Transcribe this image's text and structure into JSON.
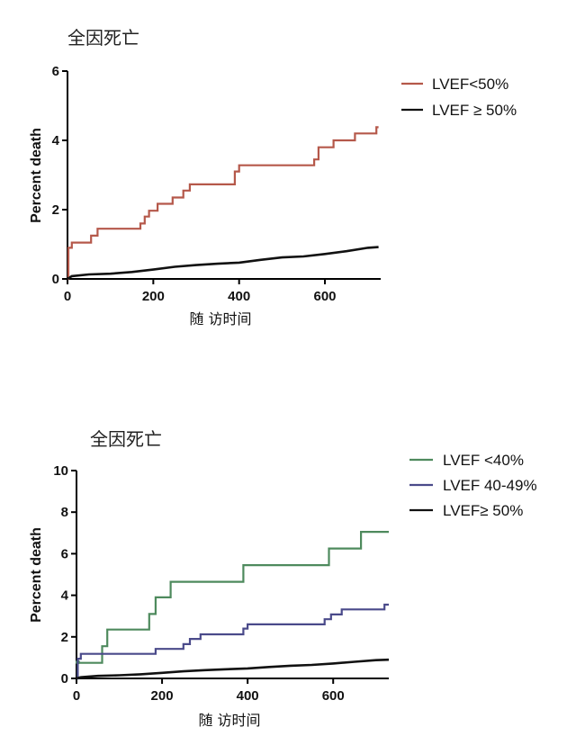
{
  "chart_data": [
    {
      "type": "line",
      "title": "全因死亡",
      "xlabel": "随 访时间",
      "ylabel": "Percent death",
      "xlim": [
        0,
        730
      ],
      "ylim": [
        0,
        6
      ],
      "xticks": [
        0,
        200,
        400,
        600
      ],
      "yticks": [
        0,
        2,
        4,
        6
      ],
      "legend_position": "top-right",
      "series": [
        {
          "name": "LVEF<50%",
          "color": "#b5584a",
          "x": [
            0,
            2,
            2,
            10,
            10,
            55,
            55,
            70,
            70,
            170,
            170,
            180,
            180,
            190,
            190,
            210,
            210,
            245,
            245,
            270,
            270,
            285,
            285,
            390,
            390,
            400,
            400,
            575,
            575,
            585,
            585,
            620,
            620,
            670,
            670,
            720,
            720,
            725
          ],
          "values": [
            0,
            0,
            0.9,
            0.9,
            1.05,
            1.05,
            1.25,
            1.25,
            1.45,
            1.45,
            1.6,
            1.6,
            1.8,
            1.8,
            1.97,
            1.97,
            2.17,
            2.17,
            2.35,
            2.35,
            2.55,
            2.55,
            2.73,
            2.73,
            3.1,
            3.1,
            3.28,
            3.28,
            3.45,
            3.45,
            3.8,
            3.8,
            4.0,
            4.0,
            4.2,
            4.2,
            4.38,
            4.38
          ]
        },
        {
          "name": "LVEF ≥ 50%",
          "color": "#111111",
          "x": [
            0,
            10,
            50,
            100,
            150,
            200,
            250,
            300,
            350,
            400,
            450,
            500,
            550,
            600,
            650,
            700,
            725
          ],
          "values": [
            0,
            0.08,
            0.13,
            0.15,
            0.2,
            0.27,
            0.35,
            0.4,
            0.44,
            0.47,
            0.55,
            0.62,
            0.65,
            0.72,
            0.8,
            0.9,
            0.92
          ]
        }
      ]
    },
    {
      "type": "line",
      "title": "全因死亡",
      "xlabel": "随 访时间",
      "ylabel": "Percent death",
      "xlim": [
        0,
        730
      ],
      "ylim": [
        0,
        10
      ],
      "xticks": [
        0,
        200,
        400,
        600
      ],
      "yticks": [
        0,
        2,
        4,
        6,
        8,
        10
      ],
      "legend_position": "top-right",
      "series": [
        {
          "name": "LVEF <40%",
          "color": "#4e8a5d",
          "x": [
            0,
            3,
            3,
            60,
            60,
            72,
            72,
            170,
            170,
            185,
            185,
            220,
            220,
            390,
            390,
            590,
            590,
            665,
            665,
            730
          ],
          "values": [
            0,
            0,
            0.75,
            0.75,
            1.55,
            1.55,
            2.35,
            2.35,
            3.1,
            3.1,
            3.9,
            3.9,
            4.65,
            4.65,
            5.45,
            5.45,
            6.25,
            6.25,
            7.05,
            7.05
          ],
          "marker": {
            "x": 3,
            "y": 0.78
          }
        },
        {
          "name": "LVEF 40-49%",
          "color": "#4a4a8a",
          "x": [
            0,
            3,
            3,
            10,
            10,
            185,
            185,
            250,
            250,
            265,
            265,
            290,
            290,
            335,
            335,
            390,
            390,
            400,
            400,
            580,
            580,
            595,
            595,
            620,
            620,
            720,
            720,
            730
          ],
          "values": [
            0,
            0,
            0.95,
            0.95,
            1.18,
            1.18,
            1.42,
            1.42,
            1.65,
            1.65,
            1.9,
            1.9,
            2.12,
            2.12,
            2.12,
            2.12,
            2.4,
            2.4,
            2.6,
            2.6,
            2.85,
            2.85,
            3.08,
            3.08,
            3.32,
            3.32,
            3.55,
            3.55
          ]
        },
        {
          "name": "LVEF≥ 50%",
          "color": "#111111",
          "x": [
            0,
            10,
            50,
            100,
            150,
            200,
            250,
            300,
            350,
            400,
            450,
            500,
            550,
            600,
            650,
            700,
            730
          ],
          "values": [
            0,
            0.06,
            0.12,
            0.15,
            0.2,
            0.27,
            0.34,
            0.4,
            0.44,
            0.48,
            0.55,
            0.61,
            0.65,
            0.72,
            0.8,
            0.88,
            0.9
          ]
        }
      ]
    }
  ]
}
